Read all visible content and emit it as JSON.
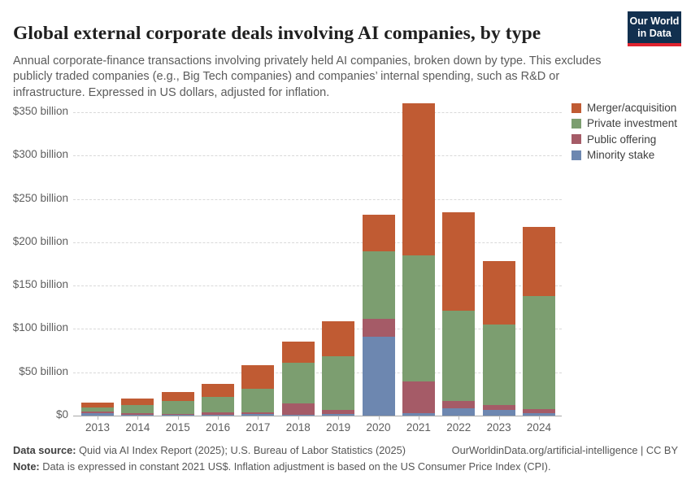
{
  "header": {
    "title": "Global external corporate deals involving AI companies, by type",
    "subtitle": "Annual corporate-finance transactions involving privately held AI companies, broken down by type. This excludes publicly traded companies (e.g., Big Tech companies) and companies’ internal spending, such as R&D or infrastructure. Expressed in US dollars, adjusted for inflation.",
    "logo": {
      "line1": "Our World",
      "line2": "in Data",
      "bg_color": "#12304F",
      "stripe_color": "#E0232E"
    }
  },
  "chart_data": {
    "type": "bar",
    "stacked": true,
    "title": "Global external corporate deals involving AI companies, by type",
    "categories": [
      "2013",
      "2014",
      "2015",
      "2016",
      "2017",
      "2018",
      "2019",
      "2020",
      "2021",
      "2022",
      "2023",
      "2024"
    ],
    "series": [
      {
        "name": "Minority stake",
        "color": "#6D87B0",
        "values": [
          2.8,
          0.8,
          0.9,
          1.2,
          1.9,
          1.0,
          1.6,
          91.0,
          2.5,
          8.0,
          6.6,
          3.1
        ]
      },
      {
        "name": "Public offering",
        "color": "#A55B67",
        "values": [
          1.9,
          2.0,
          1.1,
          2.3,
          2.2,
          13.0,
          5.3,
          21.0,
          36.5,
          9.0,
          5.4,
          4.7
        ]
      },
      {
        "name": "Private investment",
        "color": "#7C9E70",
        "values": [
          4.8,
          9.7,
          15.0,
          18.5,
          26.7,
          47.0,
          61.7,
          78.0,
          146.0,
          104.0,
          93.0,
          130.0
        ]
      },
      {
        "name": "Merger/acquisition",
        "color": "#C05B33",
        "values": [
          5.5,
          7.5,
          10.5,
          15.0,
          27.2,
          24.0,
          39.9,
          42.0,
          175.0,
          114.0,
          73.0,
          80.0
        ]
      }
    ],
    "legend": [
      {
        "label": "Merger/acquisition",
        "color": "#C05B33"
      },
      {
        "label": "Private investment",
        "color": "#7C9E70"
      },
      {
        "label": "Public offering",
        "color": "#A55B67"
      },
      {
        "label": "Minority stake",
        "color": "#6D87B0"
      }
    ],
    "legend_position": "top-right",
    "grid": true,
    "y_axis": {
      "min": 0,
      "max": 350,
      "tick_step": 50,
      "tick_values": [
        0,
        50,
        100,
        150,
        200,
        250,
        300,
        350
      ],
      "tick_labels": [
        "$0",
        "$50 billion",
        "$100 billion",
        "$150 billion",
        "$200 billion",
        "$250 billion",
        "$300 billion",
        "$350 billion"
      ]
    },
    "xlabel": "",
    "ylabel": ""
  },
  "footer": {
    "source_label": "Data source:",
    "source_text": " Quid via AI Index Report (2025); U.S. Bureau of Labor Statistics (2025)",
    "attribution": "OurWorldinData.org/artificial-intelligence | CC BY",
    "note_label": "Note:",
    "note_text": " Data is expressed in constant 2021 US$. Inflation adjustment is based on the US Consumer Price Index (CPI)."
  }
}
